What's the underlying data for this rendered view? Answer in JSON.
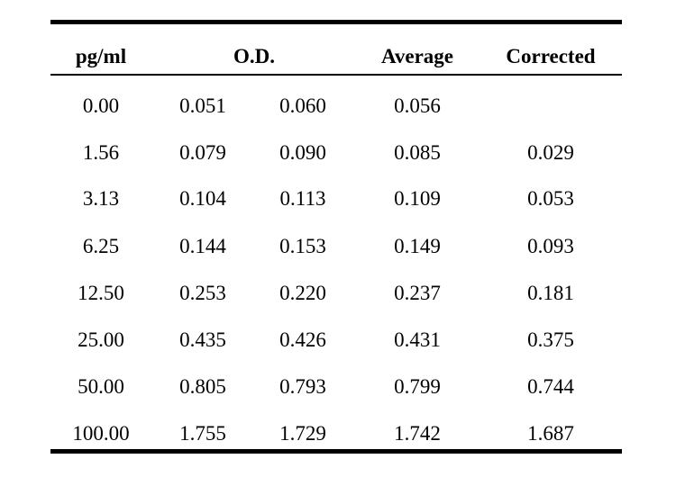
{
  "table": {
    "headers": {
      "concentration": "pg/ml",
      "od": "O.D.",
      "average": "Average",
      "corrected": "Corrected"
    },
    "rows": [
      {
        "concentration": "0.00",
        "od1": "0.051",
        "od2": "0.060",
        "average": "0.056",
        "corrected": ""
      },
      {
        "concentration": "1.56",
        "od1": "0.079",
        "od2": "0.090",
        "average": "0.085",
        "corrected": "0.029"
      },
      {
        "concentration": "3.13",
        "od1": "0.104",
        "od2": "0.113",
        "average": "0.109",
        "corrected": "0.053"
      },
      {
        "concentration": "6.25",
        "od1": "0.144",
        "od2": "0.153",
        "average": "0.149",
        "corrected": "0.093"
      },
      {
        "concentration": "12.50",
        "od1": "0.253",
        "od2": "0.220",
        "average": "0.237",
        "corrected": "0.181"
      },
      {
        "concentration": "25.00",
        "od1": "0.435",
        "od2": "0.426",
        "average": "0.431",
        "corrected": "0.375"
      },
      {
        "concentration": "50.00",
        "od1": "0.805",
        "od2": "0.793",
        "average": "0.799",
        "corrected": "0.744"
      },
      {
        "concentration": "100.00",
        "od1": "1.755",
        "od2": "1.729",
        "average": "1.742",
        "corrected": "1.687"
      }
    ]
  }
}
